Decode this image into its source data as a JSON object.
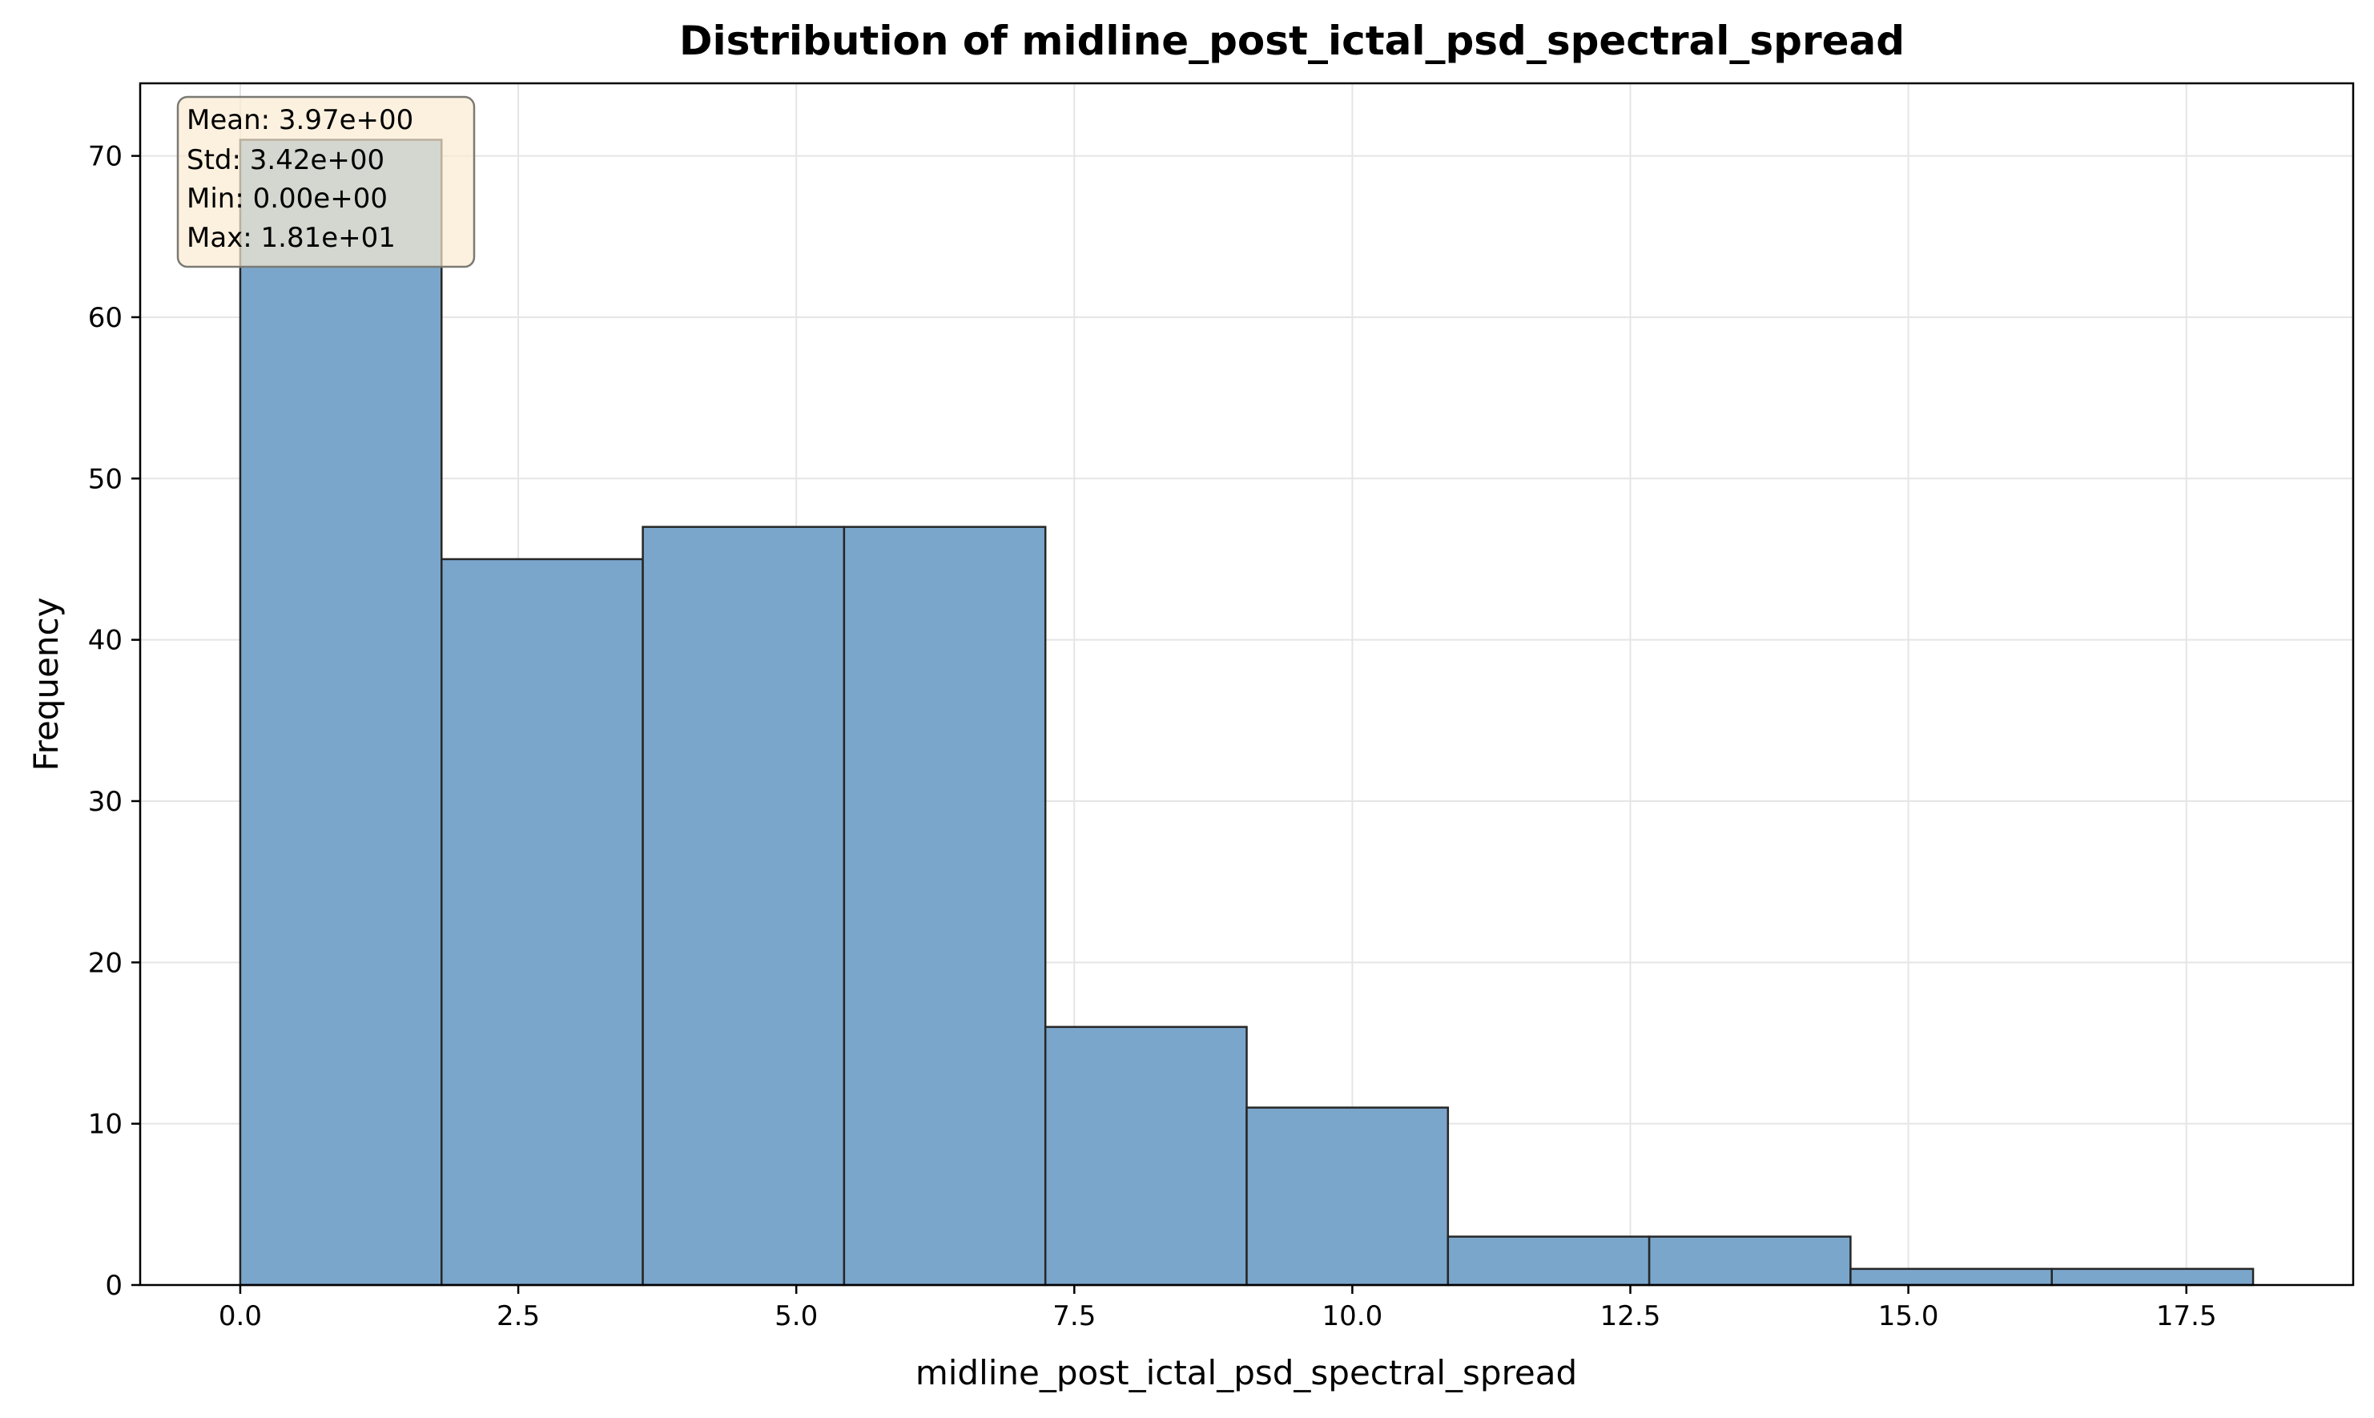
{
  "chart_data": {
    "type": "bar",
    "title": "Distribution of midline_post_ictal_psd_spectral_spread",
    "xlabel": "midline_post_ictal_psd_spectral_spread",
    "ylabel": "Frequency",
    "bin_edges": [
      0.0,
      1.81,
      3.62,
      5.43,
      7.24,
      9.05,
      10.86,
      12.67,
      14.48,
      16.29,
      18.1
    ],
    "values": [
      71,
      45,
      47,
      47,
      16,
      11,
      3,
      3,
      1,
      1
    ],
    "xlim": [
      -0.9,
      19.0
    ],
    "ylim": [
      0,
      74.5
    ],
    "xticks": [
      0.0,
      2.5,
      5.0,
      7.5,
      10.0,
      12.5,
      15.0,
      17.5
    ],
    "xtick_labels": [
      "0.0",
      "2.5",
      "5.0",
      "7.5",
      "10.0",
      "12.5",
      "15.0",
      "17.5"
    ],
    "yticks": [
      0,
      10,
      20,
      30,
      40,
      50,
      60,
      70
    ],
    "ytick_labels": [
      "0",
      "10",
      "20",
      "30",
      "40",
      "50",
      "60",
      "70"
    ],
    "grid": true,
    "stats": [
      "Mean: 3.97e+00",
      "Std: 3.42e+00",
      "Min: 0.00e+00",
      "Max: 1.81e+01"
    ]
  },
  "colors": {
    "bar_fill": "#7ba6cb",
    "bar_edge": "#262626",
    "grid": "#e5e5e5",
    "axes": "#000000",
    "stats_box_fill": "#fbebd1",
    "stats_box_edge": "#7a7a74"
  }
}
